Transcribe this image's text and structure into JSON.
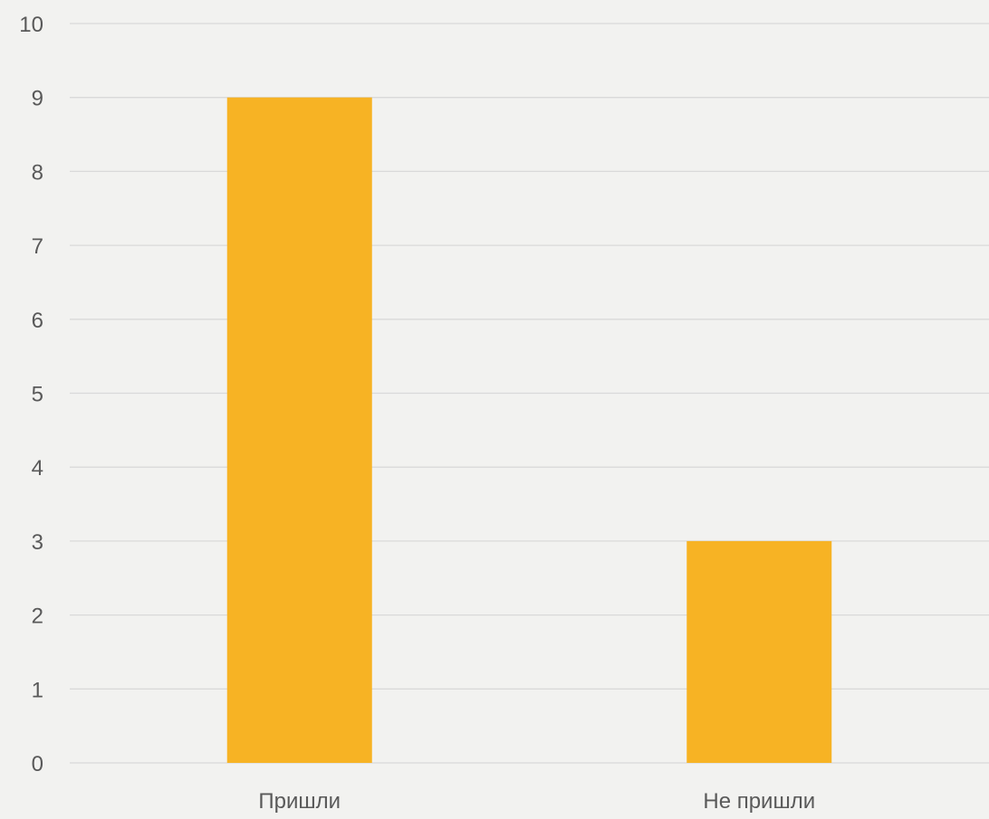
{
  "chart_data": {
    "type": "bar",
    "categories": [
      "Пришли",
      "Не пришли"
    ],
    "values": [
      9,
      3
    ],
    "ylim": [
      0,
      10
    ],
    "yticks": [
      0,
      1,
      2,
      3,
      4,
      5,
      6,
      7,
      8,
      9,
      10
    ],
    "grid": true,
    "legend": "none",
    "colors": {
      "bar": "#f7b324",
      "grid": "#d9d9d9",
      "text": "#595959",
      "background": "#f2f2f0"
    }
  }
}
